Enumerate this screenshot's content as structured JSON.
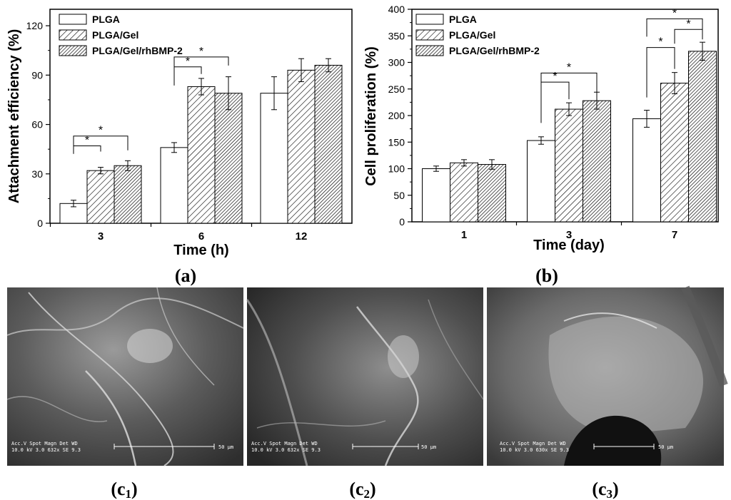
{
  "chart_data": [
    {
      "type": "bar",
      "panel": "(a)",
      "xlabel": "Time (h)",
      "ylabel": "Attachment efficiency (%)",
      "ylim": [
        0,
        130
      ],
      "yticks": [
        "0",
        "30",
        "60",
        "90",
        "120"
      ],
      "categories": [
        "3",
        "6",
        "12"
      ],
      "series": [
        {
          "name": "PLGA",
          "values": [
            12,
            46,
            79
          ],
          "errors": [
            2,
            3,
            10
          ]
        },
        {
          "name": "PLGA/Gel",
          "values": [
            32,
            83,
            93
          ],
          "errors": [
            2,
            5,
            7
          ]
        },
        {
          "name": "PLGA/Gel/rhBMP-2",
          "values": [
            35,
            79,
            96
          ],
          "errors": [
            3,
            10,
            4
          ]
        }
      ],
      "legend": "top-left",
      "significance": "*"
    },
    {
      "type": "bar",
      "panel": "(b)",
      "xlabel": "Time (day)",
      "ylabel": "Cell proliferation (%)",
      "ylim": [
        0,
        400
      ],
      "yticks": [
        "0",
        "50",
        "100",
        "150",
        "200",
        "250",
        "300",
        "350",
        "400"
      ],
      "categories": [
        "1",
        "3",
        "7"
      ],
      "series": [
        {
          "name": "PLGA",
          "values": [
            100,
            153,
            194
          ],
          "errors": [
            5,
            7,
            16
          ]
        },
        {
          "name": "PLGA/Gel",
          "values": [
            111,
            212,
            261
          ],
          "errors": [
            6,
            12,
            20
          ]
        },
        {
          "name": "PLGA/Gel/rhBMP-2",
          "values": [
            108,
            228,
            321
          ],
          "errors": [
            9,
            16,
            17
          ]
        }
      ],
      "legend": "top-left",
      "significance": "*"
    }
  ],
  "sem_panels": [
    {
      "label_main": "(c",
      "label_sub": "1",
      "label_end": ")",
      "scale": "50 µm",
      "info1": "Acc.V  Spot Magn   Det  WD",
      "info2": "10.0 kV 3.0  632x    SE   9.3"
    },
    {
      "label_main": "(c",
      "label_sub": "2",
      "label_end": ")",
      "scale": "50 µm",
      "info1": "Acc.V  Spot Magn   Det  WD",
      "info2": "10.0 kV 3.0  632x    SE   9.3"
    },
    {
      "label_main": "(c",
      "label_sub": "3",
      "label_end": ")",
      "scale": "50 µm",
      "info1": "Acc.V  Spot Magn   Det  WD",
      "info2": "10.0 kV 3.0  630x    SE   9.3"
    }
  ]
}
